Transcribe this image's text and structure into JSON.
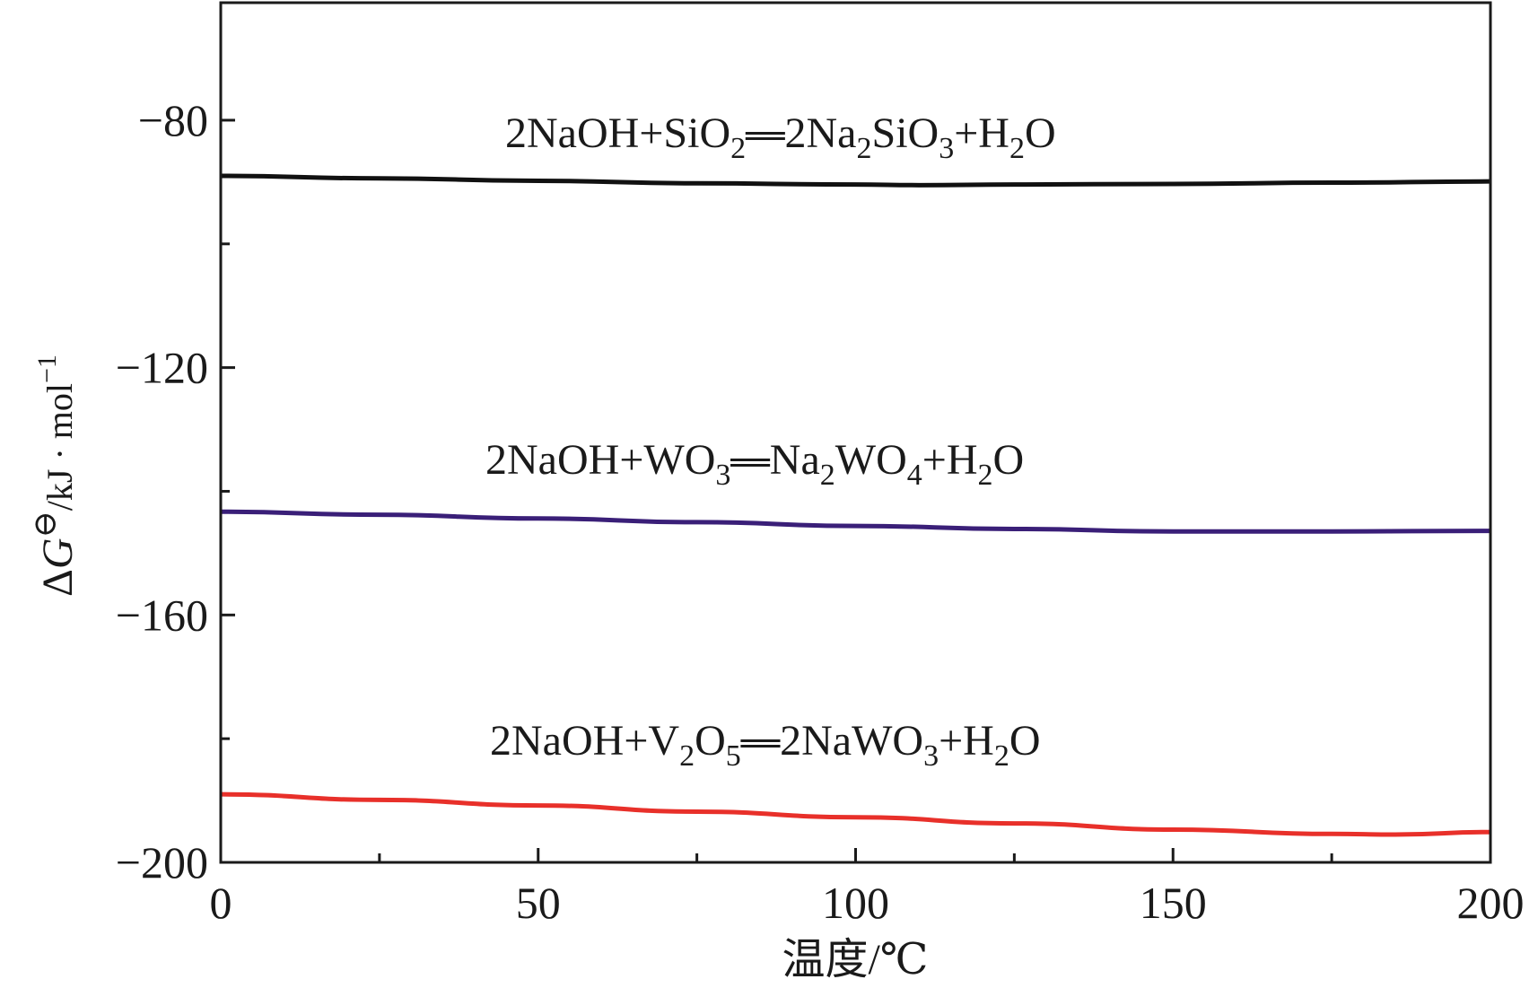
{
  "chart_data": {
    "type": "line",
    "title": "",
    "xlabel": "温度/℃",
    "ylabel": "ΔG⊖/kJ · mol⁻¹",
    "xlim": [
      0,
      200
    ],
    "ylim": [
      -200,
      -61
    ],
    "xticks": [
      0,
      50,
      100,
      150,
      200
    ],
    "yticks": [
      -80,
      -120,
      -160,
      -200
    ],
    "xtick_labels": [
      "0",
      "50",
      "100",
      "150",
      "200"
    ],
    "ytick_labels": [
      "−80",
      "−120",
      "−160",
      "−200"
    ],
    "grid": false,
    "series": [
      {
        "name": "2NaOH+SiO2══2Na2SiO3+H2O",
        "color": "#111111",
        "x": [
          0,
          25,
          50,
          75,
          100,
          110,
          125,
          150,
          175,
          200
        ],
        "y": [
          -89.0,
          -89.4,
          -89.8,
          -90.2,
          -90.4,
          -90.5,
          -90.4,
          -90.3,
          -90.1,
          -89.9
        ]
      },
      {
        "name": "2NaOH+WO3══Na2WO4+H2O",
        "color": "#3a1f78",
        "x": [
          0,
          25,
          50,
          75,
          100,
          125,
          150,
          175,
          200
        ],
        "y": [
          -143.3,
          -143.8,
          -144.4,
          -145.0,
          -145.6,
          -146.1,
          -146.5,
          -146.5,
          -146.4
        ]
      },
      {
        "name": "2NaOH+V2O5══2NaWO3+H2O",
        "color": "#e8302a",
        "x": [
          0,
          25,
          50,
          75,
          100,
          125,
          150,
          175,
          185,
          200
        ],
        "y": [
          -189.0,
          -189.9,
          -190.8,
          -191.8,
          -192.7,
          -193.7,
          -194.7,
          -195.4,
          -195.5,
          -195.1
        ]
      }
    ]
  }
}
